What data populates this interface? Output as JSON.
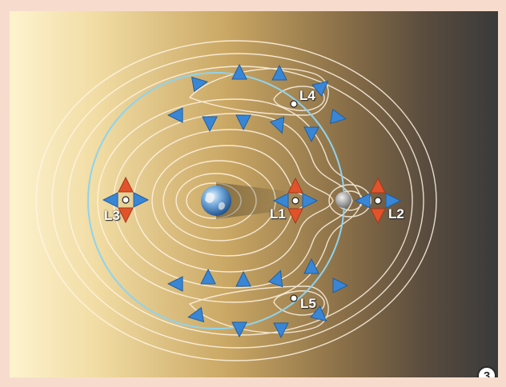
{
  "labels": {
    "L1": "L1",
    "L2": "L2",
    "L3": "L3",
    "L4": "L4",
    "L5": "L5"
  },
  "badge": "3",
  "colors": {
    "frame": "#f7dccd",
    "gradient_light": "#fdf3cf",
    "gradient_mid": "#b39355",
    "gradient_dark": "#3d3d3d",
    "contour": "#fff6e6",
    "orbit": "#8fd3f0",
    "blue_arrow": "#3a86d6",
    "red_arrow": "#e2532b"
  },
  "icons": {
    "earth": "earth-icon",
    "moon": "moon-icon"
  }
}
